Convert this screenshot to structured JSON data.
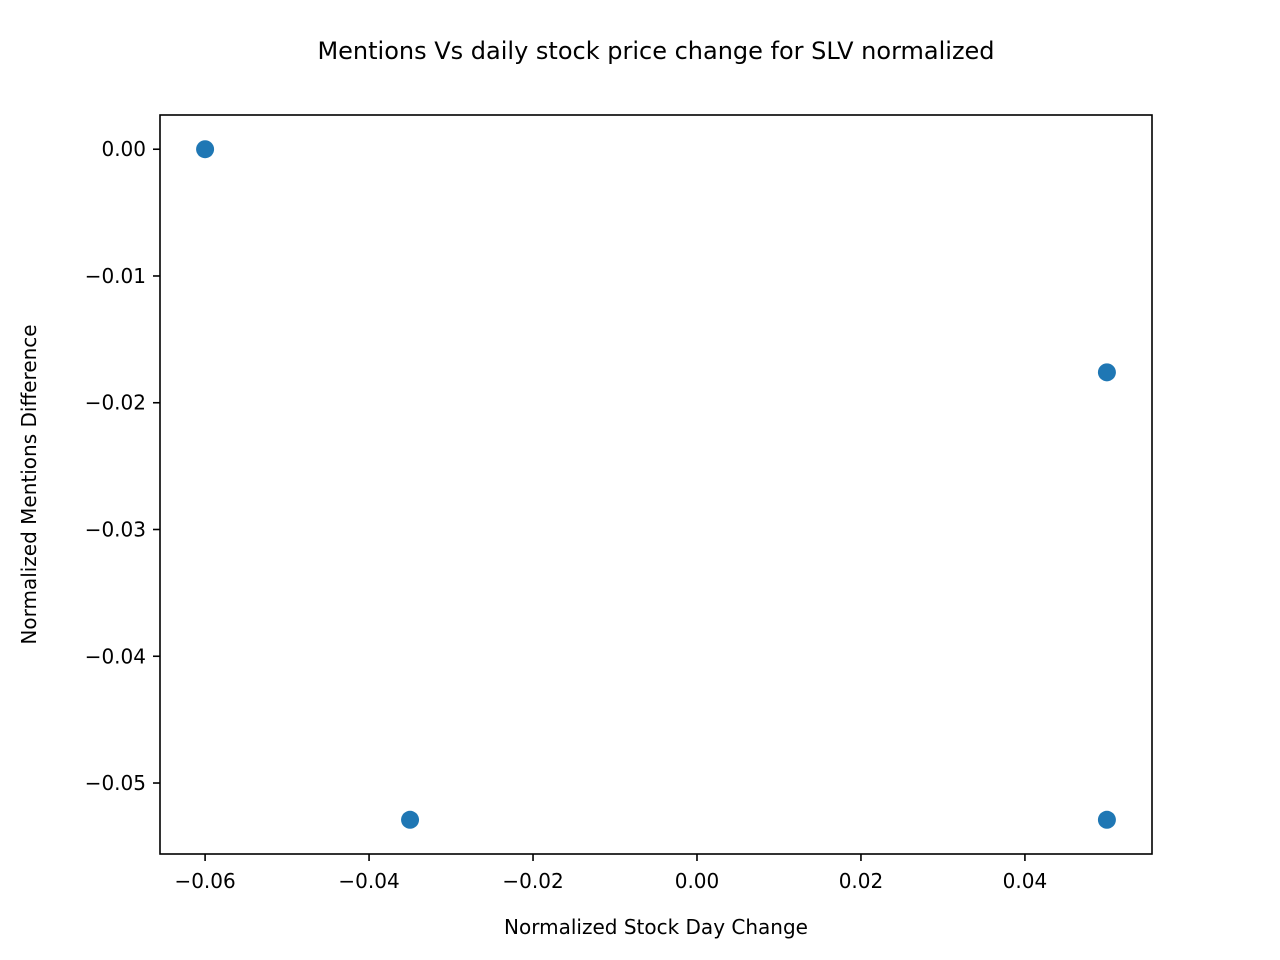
{
  "chart_data": {
    "type": "scatter",
    "title": "Mentions Vs daily stock price change for SLV normalized",
    "xlabel": "Normalized Stock Day Change",
    "ylabel": "Normalized Mentions Difference",
    "xlim": [
      -0.0655,
      0.0555
    ],
    "ylim": [
      -0.0556,
      0.0027
    ],
    "x_ticks": [
      -0.06,
      -0.04,
      -0.02,
      0.0,
      0.02,
      0.04
    ],
    "x_tick_labels": [
      "−0.06",
      "−0.04",
      "−0.02",
      "0.00",
      "0.02",
      "0.04"
    ],
    "y_ticks": [
      0.0,
      -0.01,
      -0.02,
      -0.03,
      -0.04,
      -0.05
    ],
    "y_tick_labels": [
      "0.00",
      "−0.01",
      "−0.02",
      "−0.03",
      "−0.04",
      "−0.05"
    ],
    "grid": false,
    "series": [
      {
        "name": "SLV",
        "color": "#1f77b4",
        "points": [
          {
            "x": -0.06,
            "y": 0.0
          },
          {
            "x": -0.035,
            "y": -0.0529
          },
          {
            "x": 0.05,
            "y": -0.0176
          },
          {
            "x": 0.05,
            "y": -0.0529
          }
        ]
      }
    ]
  }
}
